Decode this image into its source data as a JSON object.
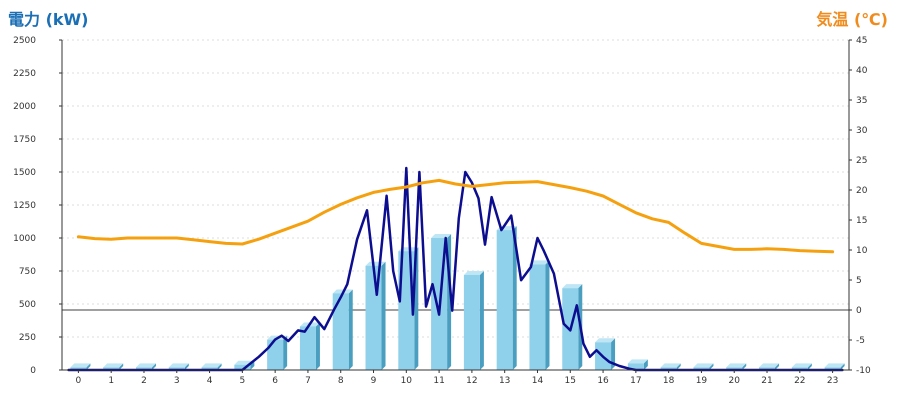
{
  "colors": {
    "left_title": "#1a6fb5",
    "right_title": "#f08c1e",
    "bar_front": "#8fd0ea",
    "bar_side": "#4a9ec0",
    "bar_top": "#bfe6f5",
    "power_line": "#0d0d8f",
    "temp_line": "#f5a10f",
    "grid": "#bbbbbb",
    "axis": "#333333"
  },
  "chart_data": {
    "type": "bar",
    "title": "",
    "left_axis_label": "電力 (kW)",
    "right_axis_label": "気温 (℃)",
    "left_ylim": [
      0,
      2500
    ],
    "left_ticks": [
      "0",
      "250",
      "500",
      "750",
      "1000",
      "1250",
      "1500",
      "1750",
      "2000",
      "2250",
      "2500"
    ],
    "right_ylim": [
      -10,
      45
    ],
    "right_ticks": [
      "-10",
      "-5",
      "0",
      "5",
      "10",
      "15",
      "20",
      "25",
      "30",
      "35",
      "40",
      "45"
    ],
    "categories": [
      "0",
      "1",
      "2",
      "3",
      "4",
      "5",
      "6",
      "7",
      "8",
      "9",
      "10",
      "11",
      "12",
      "13",
      "14",
      "15",
      "16",
      "17",
      "18",
      "19",
      "20",
      "21",
      "22",
      "23"
    ],
    "grid": true,
    "series": [
      {
        "kind": "bar",
        "axis": "left",
        "values": [
          20,
          20,
          20,
          20,
          20,
          40,
          230,
          330,
          580,
          790,
          900,
          1000,
          720,
          1060,
          800,
          620,
          210,
          50,
          20,
          20,
          20,
          20,
          20,
          20
        ]
      },
      {
        "kind": "line",
        "axis": "left",
        "x": [
          -0.3,
          5.0,
          5.2,
          5.5,
          5.8,
          6.0,
          6.2,
          6.4,
          6.7,
          6.9,
          7.2,
          7.5,
          7.8,
          8.0,
          8.2,
          8.5,
          8.8,
          9.1,
          9.4,
          9.6,
          9.8,
          10.0,
          10.2,
          10.4,
          10.6,
          10.8,
          11.0,
          11.2,
          11.4,
          11.6,
          11.8,
          12.0,
          12.2,
          12.4,
          12.6,
          12.9,
          13.2,
          13.5,
          13.8,
          14.0,
          14.2,
          14.5,
          14.8,
          15.0,
          15.2,
          15.4,
          15.6,
          15.8,
          16.0,
          16.2,
          16.5,
          16.8,
          17.0,
          17.3,
          23.3
        ],
        "values": [
          0,
          0,
          40,
          100,
          170,
          230,
          260,
          220,
          300,
          290,
          400,
          310,
          460,
          550,
          650,
          990,
          1210,
          570,
          1320,
          750,
          520,
          1530,
          420,
          1500,
          480,
          650,
          420,
          1000,
          450,
          1150,
          1500,
          1420,
          1300,
          950,
          1310,
          1060,
          1170,
          680,
          780,
          1000,
          900,
          730,
          350,
          300,
          490,
          200,
          100,
          150,
          100,
          60,
          30,
          10,
          0,
          0,
          0
        ]
      },
      {
        "kind": "line",
        "axis": "right",
        "x": [
          0,
          0.5,
          1,
          1.5,
          2,
          2.5,
          3,
          3.5,
          4,
          4.5,
          5,
          5.5,
          6,
          6.5,
          7,
          7.5,
          8,
          8.5,
          9,
          9.5,
          10,
          10.5,
          11,
          11.5,
          12,
          12.5,
          13,
          13.5,
          14,
          14.5,
          15,
          15.5,
          16,
          16.5,
          17,
          17.5,
          18,
          18.5,
          19,
          19.5,
          20,
          20.5,
          21,
          21.5,
          22,
          22.5,
          23
        ],
        "values": [
          12.2,
          11.9,
          11.8,
          12,
          12,
          12,
          12,
          11.7,
          11.4,
          11.1,
          11,
          11.8,
          12.8,
          13.8,
          14.8,
          16.3,
          17.6,
          18.7,
          19.6,
          20.1,
          20.5,
          21.2,
          21.6,
          21,
          20.6,
          20.9,
          21.2,
          21.3,
          21.4,
          20.9,
          20.4,
          19.8,
          19,
          17.6,
          16.2,
          15.2,
          14.6,
          12.8,
          11.1,
          10.6,
          10.1,
          10.1,
          10.2,
          10.1,
          9.9,
          9.8,
          9.7
        ]
      }
    ]
  }
}
